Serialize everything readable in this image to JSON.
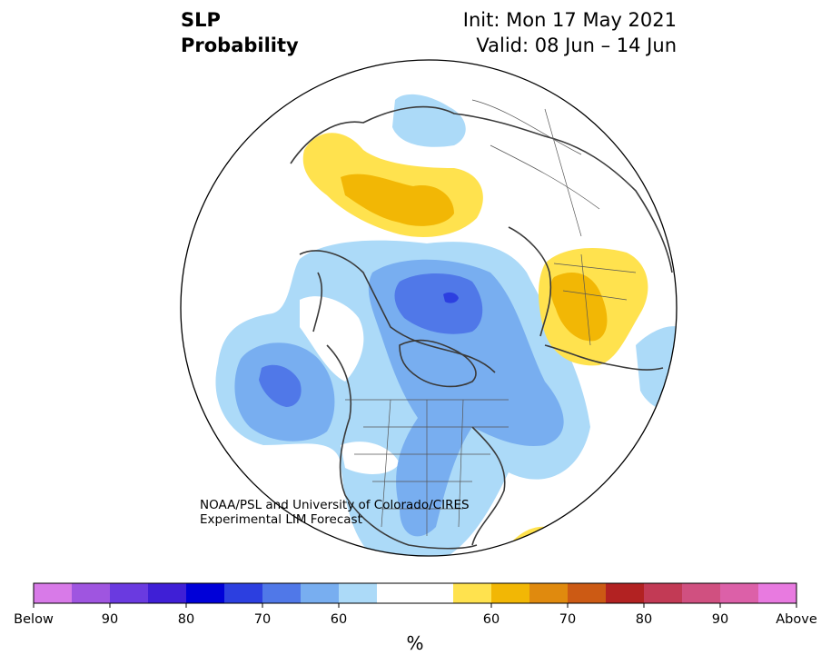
{
  "title": {
    "line1": "SLP",
    "line2": "Probability",
    "init": "Init: Mon 17 May 2021",
    "valid": "Valid: 08 Jun – 14 Jun"
  },
  "credit": {
    "line1": "NOAA/PSL and University of Colorado/CIRES",
    "line2": "Experimental LIM Forecast"
  },
  "colorbar": {
    "unit": "%",
    "colors": [
      "#d87ae8",
      "#9f55e0",
      "#6a3ae0",
      "#3f1fd6",
      "#0000d8",
      "#2c3fe0",
      "#5078e8",
      "#78aef0",
      "#acdaf8",
      "#ffffff",
      "#ffe24e",
      "#f2b705",
      "#e08a0e",
      "#cc5a14",
      "#b22222",
      "#c23a55",
      "#d05080",
      "#dc60a8",
      "#e87ae0"
    ],
    "tick_labels": [
      "Below",
      "90",
      "80",
      "70",
      "60",
      "60",
      "70",
      "80",
      "90",
      "Above"
    ]
  },
  "map_regions": {
    "below_light": "#acdaf8",
    "below_mid": "#78aef0",
    "below_dark": "#5078e8",
    "below_darkest": "#2c3fe0",
    "above_light": "#ffe24e",
    "above_mid": "#f2b705"
  }
}
